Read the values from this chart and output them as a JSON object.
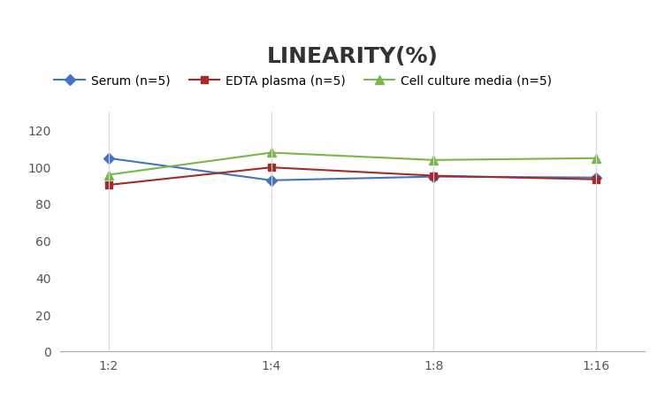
{
  "title": "LINEARITY(%)",
  "x_labels": [
    "1:2",
    "1:4",
    "1:8",
    "1:16"
  ],
  "x_positions": [
    0,
    1,
    2,
    3
  ],
  "series": [
    {
      "label": "Serum (n=5)",
      "values": [
        104.5,
        92.5,
        94.5,
        94.0
      ],
      "color": "#4472C4",
      "marker": "D",
      "marker_size": 6,
      "linewidth": 1.5
    },
    {
      "label": "EDTA plasma (n=5)",
      "values": [
        90.0,
        99.5,
        95.0,
        93.0
      ],
      "color": "#A52A2A",
      "marker": "s",
      "marker_size": 6,
      "linewidth": 1.5
    },
    {
      "label": "Cell culture media (n=5)",
      "values": [
        95.5,
        107.5,
        103.5,
        104.5
      ],
      "color": "#7AB648",
      "marker": "^",
      "marker_size": 7,
      "linewidth": 1.5
    }
  ],
  "ylim": [
    0,
    130
  ],
  "yticks": [
    0,
    20,
    40,
    60,
    80,
    100,
    120
  ],
  "background_color": "#ffffff",
  "grid_color": "#d9d9d9",
  "title_fontsize": 18,
  "tick_fontsize": 10,
  "legend_fontsize": 10
}
